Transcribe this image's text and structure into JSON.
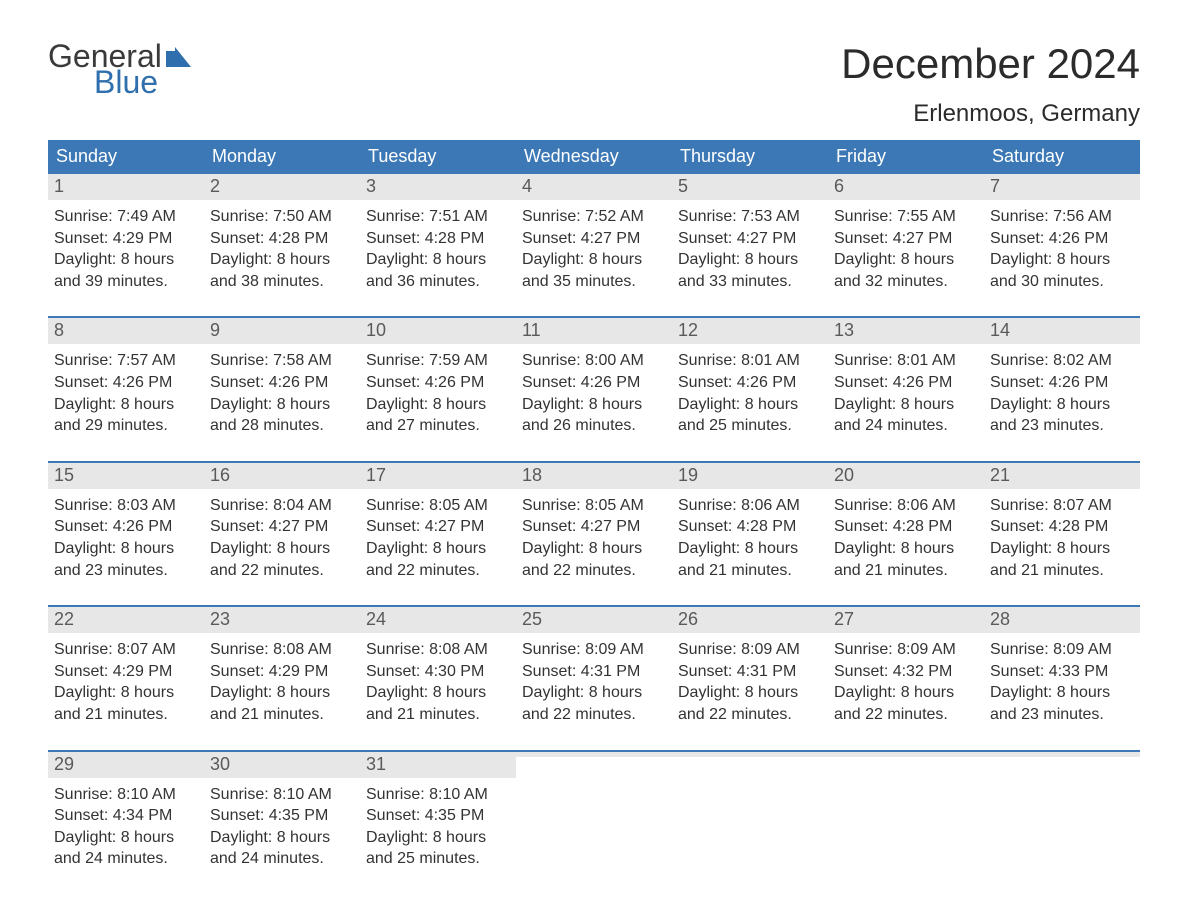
{
  "logo": {
    "text1": "General",
    "text2": "Blue",
    "text1_color": "#3a3a3a",
    "text2_color": "#2f6fad",
    "flag_color": "#2f6fad"
  },
  "header": {
    "title": "December 2024",
    "subtitle": "Erlenmoos, Germany"
  },
  "style": {
    "header_bg": "#3b78b5",
    "header_text_color": "#ffffff",
    "daynum_bg": "#e7e7e7",
    "daynum_color": "#5a5a5a",
    "body_text_color": "#333333",
    "week_border_color": "#3b78b5",
    "page_bg": "#ffffff",
    "font_family": "Arial, Helvetica, sans-serif",
    "title_fontsize": 42,
    "subtitle_fontsize": 24,
    "dayhead_fontsize": 18,
    "daynum_fontsize": 18,
    "body_fontsize": 16
  },
  "calendar": {
    "day_headers": [
      "Sunday",
      "Monday",
      "Tuesday",
      "Wednesday",
      "Thursday",
      "Friday",
      "Saturday"
    ],
    "weeks": [
      [
        {
          "day": "1",
          "sunrise": "Sunrise: 7:49 AM",
          "sunset": "Sunset: 4:29 PM",
          "dl1": "Daylight: 8 hours",
          "dl2": "and 39 minutes."
        },
        {
          "day": "2",
          "sunrise": "Sunrise: 7:50 AM",
          "sunset": "Sunset: 4:28 PM",
          "dl1": "Daylight: 8 hours",
          "dl2": "and 38 minutes."
        },
        {
          "day": "3",
          "sunrise": "Sunrise: 7:51 AM",
          "sunset": "Sunset: 4:28 PM",
          "dl1": "Daylight: 8 hours",
          "dl2": "and 36 minutes."
        },
        {
          "day": "4",
          "sunrise": "Sunrise: 7:52 AM",
          "sunset": "Sunset: 4:27 PM",
          "dl1": "Daylight: 8 hours",
          "dl2": "and 35 minutes."
        },
        {
          "day": "5",
          "sunrise": "Sunrise: 7:53 AM",
          "sunset": "Sunset: 4:27 PM",
          "dl1": "Daylight: 8 hours",
          "dl2": "and 33 minutes."
        },
        {
          "day": "6",
          "sunrise": "Sunrise: 7:55 AM",
          "sunset": "Sunset: 4:27 PM",
          "dl1": "Daylight: 8 hours",
          "dl2": "and 32 minutes."
        },
        {
          "day": "7",
          "sunrise": "Sunrise: 7:56 AM",
          "sunset": "Sunset: 4:26 PM",
          "dl1": "Daylight: 8 hours",
          "dl2": "and 30 minutes."
        }
      ],
      [
        {
          "day": "8",
          "sunrise": "Sunrise: 7:57 AM",
          "sunset": "Sunset: 4:26 PM",
          "dl1": "Daylight: 8 hours",
          "dl2": "and 29 minutes."
        },
        {
          "day": "9",
          "sunrise": "Sunrise: 7:58 AM",
          "sunset": "Sunset: 4:26 PM",
          "dl1": "Daylight: 8 hours",
          "dl2": "and 28 minutes."
        },
        {
          "day": "10",
          "sunrise": "Sunrise: 7:59 AM",
          "sunset": "Sunset: 4:26 PM",
          "dl1": "Daylight: 8 hours",
          "dl2": "and 27 minutes."
        },
        {
          "day": "11",
          "sunrise": "Sunrise: 8:00 AM",
          "sunset": "Sunset: 4:26 PM",
          "dl1": "Daylight: 8 hours",
          "dl2": "and 26 minutes."
        },
        {
          "day": "12",
          "sunrise": "Sunrise: 8:01 AM",
          "sunset": "Sunset: 4:26 PM",
          "dl1": "Daylight: 8 hours",
          "dl2": "and 25 minutes."
        },
        {
          "day": "13",
          "sunrise": "Sunrise: 8:01 AM",
          "sunset": "Sunset: 4:26 PM",
          "dl1": "Daylight: 8 hours",
          "dl2": "and 24 minutes."
        },
        {
          "day": "14",
          "sunrise": "Sunrise: 8:02 AM",
          "sunset": "Sunset: 4:26 PM",
          "dl1": "Daylight: 8 hours",
          "dl2": "and 23 minutes."
        }
      ],
      [
        {
          "day": "15",
          "sunrise": "Sunrise: 8:03 AM",
          "sunset": "Sunset: 4:26 PM",
          "dl1": "Daylight: 8 hours",
          "dl2": "and 23 minutes."
        },
        {
          "day": "16",
          "sunrise": "Sunrise: 8:04 AM",
          "sunset": "Sunset: 4:27 PM",
          "dl1": "Daylight: 8 hours",
          "dl2": "and 22 minutes."
        },
        {
          "day": "17",
          "sunrise": "Sunrise: 8:05 AM",
          "sunset": "Sunset: 4:27 PM",
          "dl1": "Daylight: 8 hours",
          "dl2": "and 22 minutes."
        },
        {
          "day": "18",
          "sunrise": "Sunrise: 8:05 AM",
          "sunset": "Sunset: 4:27 PM",
          "dl1": "Daylight: 8 hours",
          "dl2": "and 22 minutes."
        },
        {
          "day": "19",
          "sunrise": "Sunrise: 8:06 AM",
          "sunset": "Sunset: 4:28 PM",
          "dl1": "Daylight: 8 hours",
          "dl2": "and 21 minutes."
        },
        {
          "day": "20",
          "sunrise": "Sunrise: 8:06 AM",
          "sunset": "Sunset: 4:28 PM",
          "dl1": "Daylight: 8 hours",
          "dl2": "and 21 minutes."
        },
        {
          "day": "21",
          "sunrise": "Sunrise: 8:07 AM",
          "sunset": "Sunset: 4:28 PM",
          "dl1": "Daylight: 8 hours",
          "dl2": "and 21 minutes."
        }
      ],
      [
        {
          "day": "22",
          "sunrise": "Sunrise: 8:07 AM",
          "sunset": "Sunset: 4:29 PM",
          "dl1": "Daylight: 8 hours",
          "dl2": "and 21 minutes."
        },
        {
          "day": "23",
          "sunrise": "Sunrise: 8:08 AM",
          "sunset": "Sunset: 4:29 PM",
          "dl1": "Daylight: 8 hours",
          "dl2": "and 21 minutes."
        },
        {
          "day": "24",
          "sunrise": "Sunrise: 8:08 AM",
          "sunset": "Sunset: 4:30 PM",
          "dl1": "Daylight: 8 hours",
          "dl2": "and 21 minutes."
        },
        {
          "day": "25",
          "sunrise": "Sunrise: 8:09 AM",
          "sunset": "Sunset: 4:31 PM",
          "dl1": "Daylight: 8 hours",
          "dl2": "and 22 minutes."
        },
        {
          "day": "26",
          "sunrise": "Sunrise: 8:09 AM",
          "sunset": "Sunset: 4:31 PM",
          "dl1": "Daylight: 8 hours",
          "dl2": "and 22 minutes."
        },
        {
          "day": "27",
          "sunrise": "Sunrise: 8:09 AM",
          "sunset": "Sunset: 4:32 PM",
          "dl1": "Daylight: 8 hours",
          "dl2": "and 22 minutes."
        },
        {
          "day": "28",
          "sunrise": "Sunrise: 8:09 AM",
          "sunset": "Sunset: 4:33 PM",
          "dl1": "Daylight: 8 hours",
          "dl2": "and 23 minutes."
        }
      ],
      [
        {
          "day": "29",
          "sunrise": "Sunrise: 8:10 AM",
          "sunset": "Sunset: 4:34 PM",
          "dl1": "Daylight: 8 hours",
          "dl2": "and 24 minutes."
        },
        {
          "day": "30",
          "sunrise": "Sunrise: 8:10 AM",
          "sunset": "Sunset: 4:35 PM",
          "dl1": "Daylight: 8 hours",
          "dl2": "and 24 minutes."
        },
        {
          "day": "31",
          "sunrise": "Sunrise: 8:10 AM",
          "sunset": "Sunset: 4:35 PM",
          "dl1": "Daylight: 8 hours",
          "dl2": "and 25 minutes."
        },
        {
          "empty": true
        },
        {
          "empty": true
        },
        {
          "empty": true
        },
        {
          "empty": true
        }
      ]
    ]
  }
}
